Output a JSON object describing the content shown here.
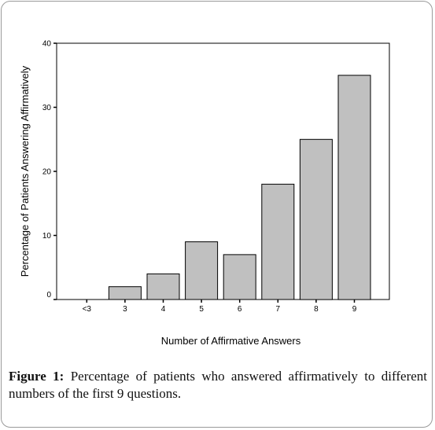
{
  "figure": {
    "label": "Figure 1:",
    "caption": " Percentage of patients who answered affirmatively to different numbers of the first 9 questions."
  },
  "chart_data": {
    "type": "bar",
    "categories": [
      "<3",
      "3",
      "4",
      "5",
      "6",
      "7",
      "8",
      "9"
    ],
    "values": [
      0,
      2,
      4,
      9,
      7,
      18,
      25,
      35
    ],
    "xlabel": "Number of Affirmative Answers",
    "ylabel": "Percentage of Patients Answering Affirmatively",
    "ylim": [
      0,
      40
    ],
    "yticks": [
      0,
      10,
      20,
      30,
      40
    ],
    "bar_color": "#c0c0c0",
    "grid": false
  }
}
